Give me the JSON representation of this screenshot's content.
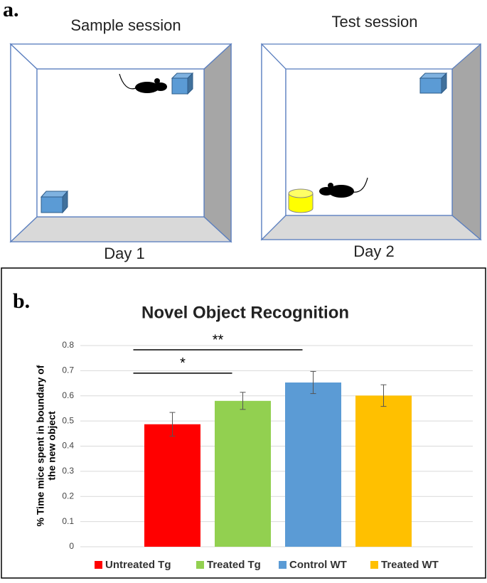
{
  "panel_a": {
    "label": "a.",
    "sample_title": "Sample session",
    "test_title": "Test session",
    "day1": "Day 1",
    "day2": "Day 2"
  },
  "panel_b": {
    "label": "b."
  },
  "chart_data": {
    "type": "bar",
    "title": "Novel Object Recognition",
    "ylabel": [
      "% Time  mice spent in boundary of",
      "the new object"
    ],
    "categories": [
      "Untreated Tg",
      "Treated Tg",
      "Control WT",
      "Treated WT"
    ],
    "values": [
      0.487,
      0.58,
      0.653,
      0.601
    ],
    "errors": [
      0.047,
      0.034,
      0.044,
      0.043
    ],
    "colors": [
      "#ff0000",
      "#92d050",
      "#5b9bd5",
      "#ffc000"
    ],
    "ylim": [
      0,
      0.8
    ],
    "yticks": [
      0,
      0.1,
      0.2,
      0.3,
      0.4,
      0.5,
      0.6,
      0.7,
      0.8
    ],
    "grid": true,
    "legend": "bottom",
    "annotations": [
      {
        "text": "*",
        "from": 0,
        "to": 1,
        "y": 0.69
      },
      {
        "text": "**",
        "from": 0,
        "to": 2,
        "y": 0.783
      }
    ]
  }
}
